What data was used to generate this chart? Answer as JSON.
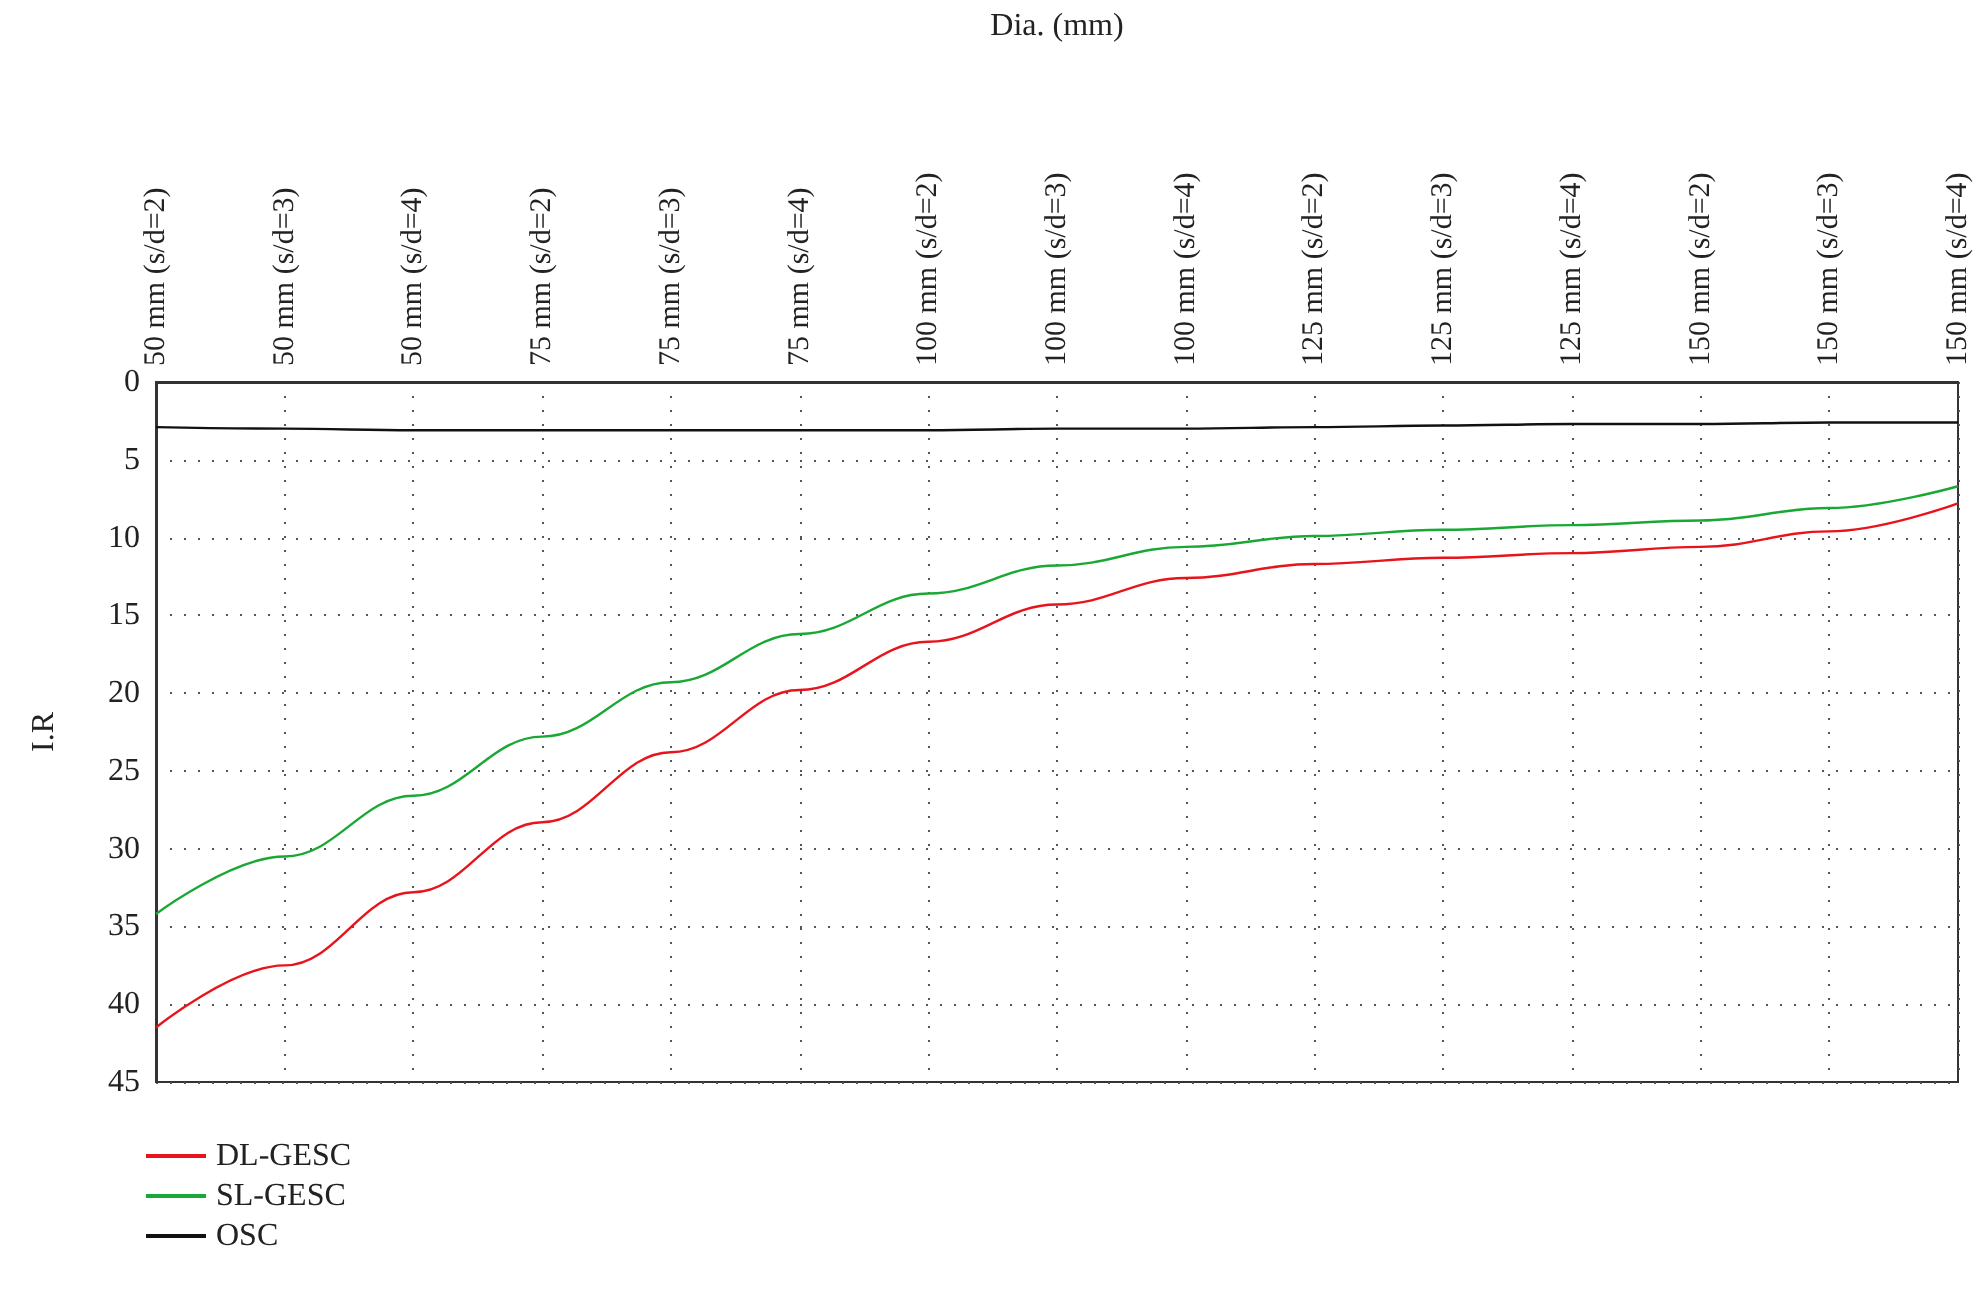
{
  "chart_data": {
    "type": "line",
    "xlabel": "Dia. (mm)",
    "ylabel": "I.R",
    "categories": [
      "50 mm (s/d=2)",
      "50 mm (s/d=3)",
      "50 mm (s/d=4)",
      "75 mm (s/d=2)",
      "75 mm (s/d=3)",
      "75 mm (s/d=4)",
      "100 mm (s/d=2)",
      "100 mm (s/d=3)",
      "100 mm (s/d=4)",
      "125 mm (s/d=2)",
      "125 mm (s/d=3)",
      "125 mm (s/d=4)",
      "150 mm (s/d=2)",
      "150 mm (s/d=3)",
      "150 mm (s/d=4)"
    ],
    "series": [
      {
        "name": "DL-GESC",
        "color": "#e8141c",
        "values": [
          41.5,
          37.5,
          32.8,
          28.3,
          23.8,
          19.8,
          16.7,
          14.3,
          12.6,
          11.7,
          11.3,
          11.0,
          10.6,
          9.6,
          7.8
        ]
      },
      {
        "name": "SL-GESC",
        "color": "#1aa834",
        "values": [
          34.2,
          30.5,
          26.6,
          22.8,
          19.3,
          16.2,
          13.6,
          11.8,
          10.6,
          9.9,
          9.5,
          9.2,
          8.9,
          8.1,
          6.7
        ]
      },
      {
        "name": "OSC",
        "color": "#111111",
        "values": [
          2.9,
          3.0,
          3.1,
          3.1,
          3.1,
          3.1,
          3.1,
          3.0,
          3.0,
          2.9,
          2.8,
          2.7,
          2.7,
          2.6,
          2.6
        ]
      }
    ],
    "ylim": [
      45,
      0
    ],
    "yticks": [
      0,
      5,
      10,
      15,
      20,
      25,
      30,
      35,
      40,
      45
    ],
    "grid": true,
    "legend": "bottom left",
    "marker": "none",
    "line_style": "solid"
  }
}
